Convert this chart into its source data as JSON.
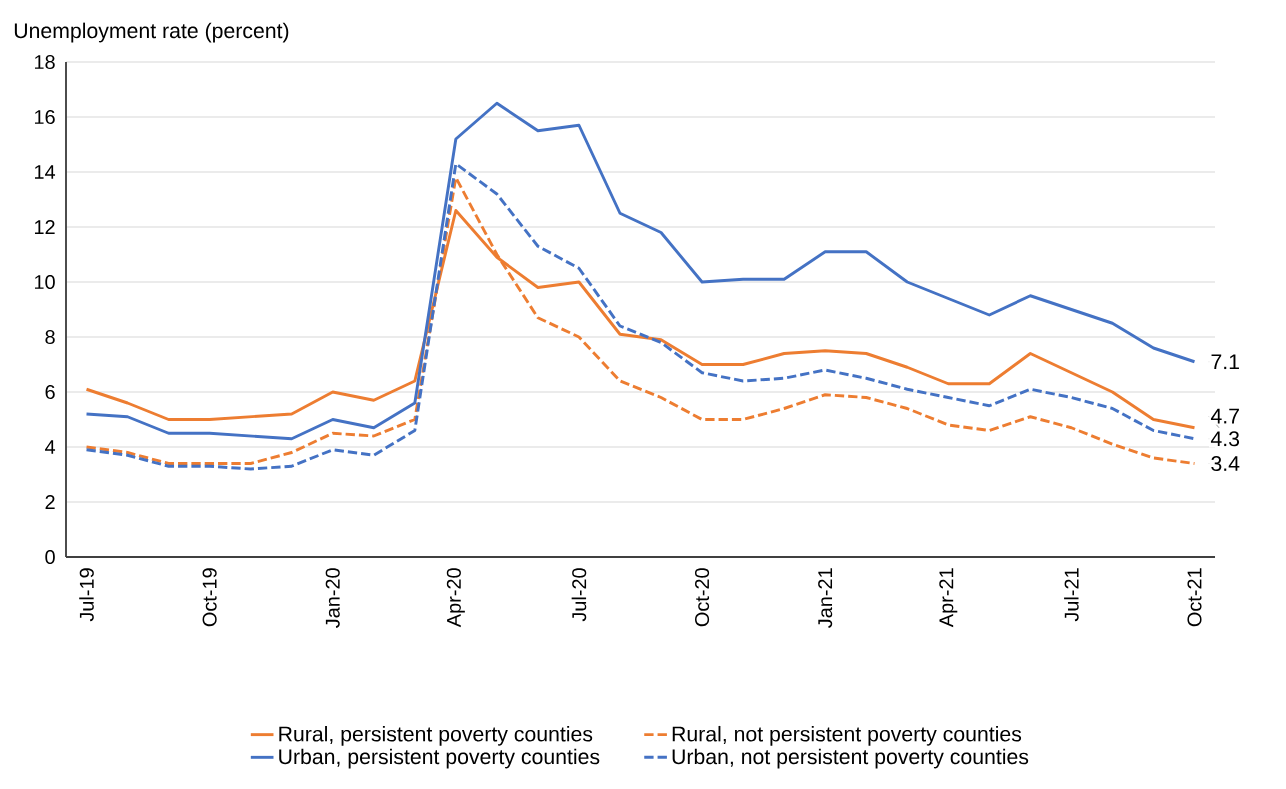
{
  "chart_data": {
    "type": "line",
    "ylabel": "Unemployment rate (percent)",
    "categories": [
      "Jul-19",
      null,
      null,
      "Oct-19",
      null,
      null,
      "Jan-20",
      null,
      null,
      "Apr-20",
      null,
      null,
      "Jul-20",
      null,
      null,
      "Oct-20",
      null,
      null,
      "Jan-21",
      null,
      null,
      "Apr-21",
      null,
      null,
      "Jul-21",
      null,
      null,
      "Oct-21"
    ],
    "ylim": [
      0,
      18
    ],
    "yticks": [
      0,
      2,
      4,
      6,
      8,
      10,
      12,
      14,
      16,
      18
    ],
    "grid": "y",
    "legend": "bottom",
    "series": [
      {
        "name": "Rural, persistent poverty counties",
        "color": "#ed7d31",
        "line_style": "solid",
        "values": [
          6.1,
          5.6,
          5.0,
          5.0,
          5.1,
          5.2,
          6.0,
          5.7,
          6.4,
          12.6,
          10.9,
          9.8,
          10.0,
          8.1,
          7.9,
          7.0,
          7.0,
          7.4,
          7.5,
          7.4,
          6.9,
          6.3,
          6.3,
          7.4,
          6.7,
          6.0,
          5.0,
          4.7
        ],
        "value_labels": [
          null,
          null,
          null,
          null,
          null,
          null,
          null,
          null,
          null,
          null,
          null,
          null,
          null,
          null,
          null,
          null,
          null,
          null,
          null,
          null,
          null,
          null,
          null,
          null,
          null,
          null,
          null,
          "4.7"
        ]
      },
      {
        "name": "Rural, not persistent poverty counties",
        "color": "#ed7d31",
        "line_style": "dashed",
        "values": [
          4.0,
          3.8,
          3.4,
          3.4,
          3.4,
          3.8,
          4.5,
          4.4,
          5.0,
          13.8,
          11.0,
          8.7,
          8.0,
          6.4,
          5.8,
          5.0,
          5.0,
          5.4,
          5.9,
          5.8,
          5.4,
          4.8,
          4.6,
          5.1,
          4.7,
          4.1,
          3.6,
          3.4
        ],
        "value_labels": [
          null,
          null,
          null,
          null,
          null,
          null,
          null,
          null,
          null,
          null,
          null,
          null,
          null,
          null,
          null,
          null,
          null,
          null,
          null,
          null,
          null,
          null,
          null,
          null,
          null,
          null,
          null,
          "3.4"
        ]
      },
      {
        "name": "Urban, persistent poverty counties",
        "color": "#4472c4",
        "line_style": "solid",
        "values": [
          5.2,
          5.1,
          4.5,
          4.5,
          4.4,
          4.3,
          5.0,
          4.7,
          5.6,
          15.2,
          16.5,
          15.5,
          15.7,
          12.5,
          11.8,
          10.0,
          10.1,
          10.1,
          11.1,
          11.1,
          10.0,
          9.4,
          8.8,
          9.5,
          9.0,
          8.5,
          7.6,
          7.1
        ],
        "value_labels": [
          null,
          null,
          null,
          null,
          null,
          null,
          null,
          null,
          null,
          null,
          null,
          null,
          null,
          null,
          null,
          null,
          null,
          null,
          null,
          null,
          null,
          null,
          null,
          null,
          null,
          null,
          null,
          "7.1"
        ]
      },
      {
        "name": "Urban, not persistent poverty counties",
        "color": "#4472c4",
        "line_style": "dashed",
        "values": [
          3.9,
          3.7,
          3.3,
          3.3,
          3.2,
          3.3,
          3.9,
          3.7,
          4.6,
          14.3,
          13.2,
          11.3,
          10.5,
          8.4,
          7.8,
          6.7,
          6.4,
          6.5,
          6.8,
          6.5,
          6.1,
          5.8,
          5.5,
          6.1,
          5.8,
          5.4,
          4.6,
          4.3
        ],
        "value_labels": [
          null,
          null,
          null,
          null,
          null,
          null,
          null,
          null,
          null,
          null,
          null,
          null,
          null,
          null,
          null,
          null,
          null,
          null,
          null,
          null,
          null,
          null,
          null,
          null,
          null,
          null,
          null,
          "4.3"
        ]
      }
    ]
  }
}
